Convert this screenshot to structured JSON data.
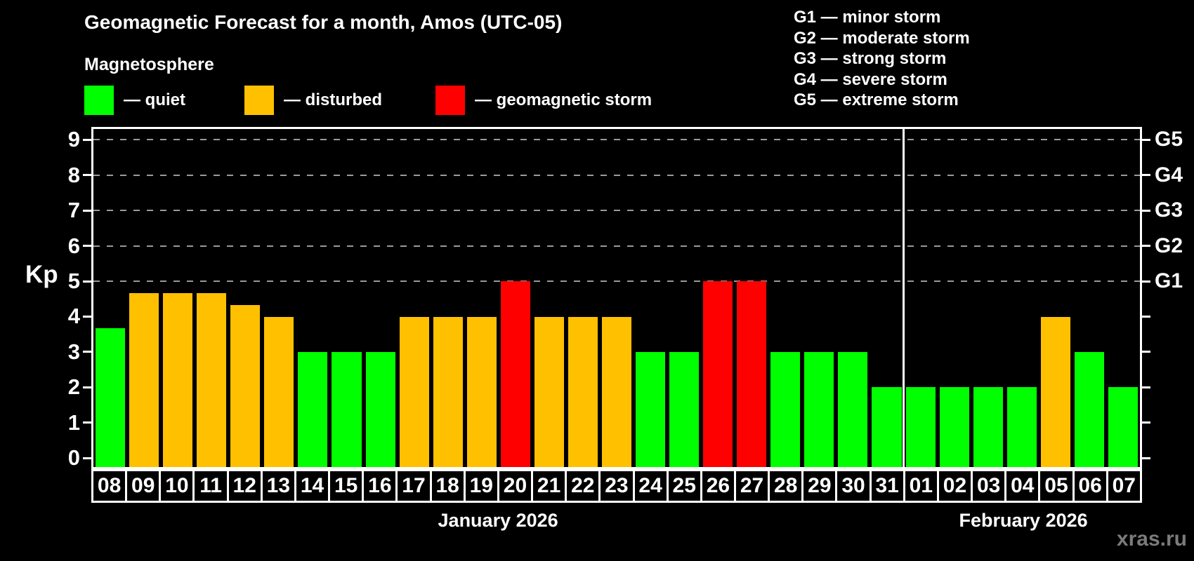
{
  "title": "Geomagnetic Forecast for a month, Amos (UTC-05)",
  "subtitle": "Magnetosphere",
  "status_legend": [
    {
      "name": "quiet",
      "label": "— quiet",
      "color": "#00ff00"
    },
    {
      "name": "disturbed",
      "label": "— disturbed",
      "color": "#ffc000"
    },
    {
      "name": "storm",
      "label": "— geomagnetic storm",
      "color": "#ff0000"
    }
  ],
  "g_scale_legend": [
    "G1 — minor storm",
    "G2 — moderate storm",
    "G3 — strong storm",
    "G4 — severe storm",
    "G5 — extreme storm"
  ],
  "watermark": "xras.ru",
  "chart_data": {
    "type": "bar",
    "title": "Geomagnetic Forecast for a month, Amos (UTC-05)",
    "ylabel": "Kp",
    "ylim": [
      0,
      9
    ],
    "y_ticks": [
      0,
      1,
      2,
      3,
      4,
      5,
      6,
      7,
      8,
      9
    ],
    "gridlines_kp": [
      5,
      6,
      7,
      8,
      9
    ],
    "grid_style": "dashed horizontal lines only at G-storm levels (Kp 5-9)",
    "right_axis": [
      {
        "label": "G1",
        "kp": 5
      },
      {
        "label": "G2",
        "kp": 6
      },
      {
        "label": "G3",
        "kp": 7
      },
      {
        "label": "G4",
        "kp": 8
      },
      {
        "label": "G5",
        "kp": 9
      }
    ],
    "months": [
      {
        "name": "January 2026",
        "days": [
          "08",
          "09",
          "10",
          "11",
          "12",
          "13",
          "14",
          "15",
          "16",
          "17",
          "18",
          "19",
          "20",
          "21",
          "22",
          "23",
          "24",
          "25",
          "26",
          "27",
          "28",
          "29",
          "30",
          "31"
        ]
      },
      {
        "name": "February 2026",
        "days": [
          "01",
          "02",
          "03",
          "04",
          "05",
          "06",
          "07"
        ]
      }
    ],
    "categories": [
      "08",
      "09",
      "10",
      "11",
      "12",
      "13",
      "14",
      "15",
      "16",
      "17",
      "18",
      "19",
      "20",
      "21",
      "22",
      "23",
      "24",
      "25",
      "26",
      "27",
      "28",
      "29",
      "30",
      "31",
      "01",
      "02",
      "03",
      "04",
      "05",
      "06",
      "07"
    ],
    "values": [
      3.67,
      4.67,
      4.67,
      4.67,
      4.33,
      4,
      3,
      3,
      3,
      4,
      4,
      4,
      5,
      4,
      4,
      4,
      3,
      3,
      5,
      5,
      3,
      3,
      3,
      2,
      2,
      2,
      2,
      2,
      4,
      3,
      2
    ],
    "statuses": [
      "quiet",
      "disturbed",
      "disturbed",
      "disturbed",
      "disturbed",
      "disturbed",
      "quiet",
      "quiet",
      "quiet",
      "disturbed",
      "disturbed",
      "disturbed",
      "storm",
      "disturbed",
      "disturbed",
      "disturbed",
      "quiet",
      "quiet",
      "storm",
      "storm",
      "quiet",
      "quiet",
      "quiet",
      "quiet",
      "quiet",
      "quiet",
      "quiet",
      "quiet",
      "disturbed",
      "quiet",
      "quiet"
    ],
    "colors": {
      "quiet": "#00ff00",
      "disturbed": "#ffc000",
      "storm": "#ff0000"
    },
    "legend_position": "top-left statuses, top-right G-scale"
  }
}
